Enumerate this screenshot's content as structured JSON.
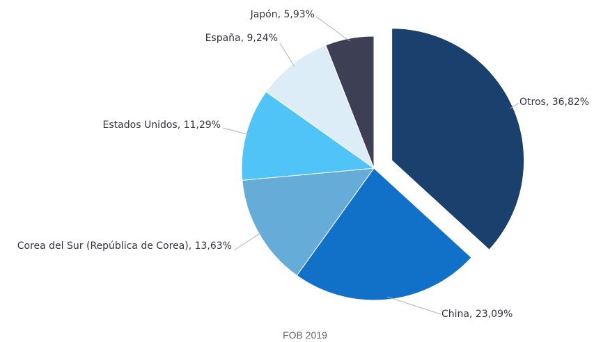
{
  "chart_data": {
    "type": "pie",
    "title": "FOB 2019",
    "values": [
      36.82,
      23.09,
      13.63,
      11.29,
      9.24,
      5.93
    ],
    "value_labels": [
      "Otros, 36,82%",
      "China, 23,09%",
      "Corea del Sur (República de Corea), 13,63%",
      "Estados Unidos, 11,29%",
      "España, 9,24%",
      "Japón, 5,93%"
    ],
    "colors": [
      "#1a406d",
      "#1170c8",
      "#66acd9",
      "#50c3f7",
      "#dcedf8",
      "#3d3f55"
    ],
    "exploded": [
      true,
      false,
      false,
      false,
      false,
      false
    ]
  }
}
